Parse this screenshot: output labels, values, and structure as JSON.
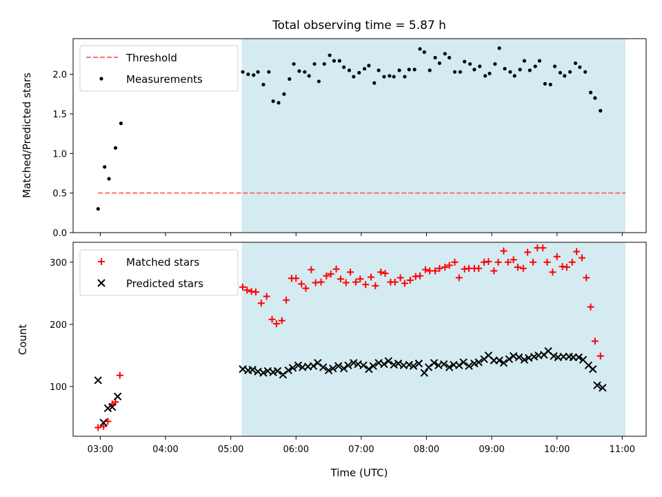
{
  "colors": {
    "shade": "#add8e6",
    "threshold": "#ff6b6b",
    "measurements": "#000000",
    "matched": "#ff0000",
    "predicted": "#000000"
  },
  "chart_data": [
    {
      "type": "scatter",
      "title": "Total observing time = 5.87 h",
      "ylabel": "Matched/Predicted stars",
      "xlabel": "",
      "xlim": [
        "02:35",
        "11:22"
      ],
      "ylim": [
        0,
        2.45
      ],
      "x_ticks": [
        "03:00",
        "04:00",
        "05:00",
        "06:00",
        "07:00",
        "08:00",
        "09:00",
        "10:00",
        "11:00"
      ],
      "y_ticks": [
        "0.0",
        "0.5",
        "1.0",
        "1.5",
        "2.0"
      ],
      "shaded_span": [
        "05:10",
        "11:03"
      ],
      "threshold": {
        "name": "Threshold",
        "value": 0.5,
        "x_range": [
          "02:58",
          "11:03"
        ]
      },
      "legend_position": "upper left",
      "series": [
        {
          "name": "Measurements",
          "points": [
            [
              "02:58",
              0.3
            ],
            [
              "03:04",
              0.83
            ],
            [
              "03:08",
              0.68
            ],
            [
              "03:14",
              1.07
            ],
            [
              "03:19",
              1.38
            ],
            [
              "05:11",
              2.03
            ],
            [
              "05:16",
              2.0
            ],
            [
              "05:21",
              1.99
            ],
            [
              "05:25",
              2.03
            ],
            [
              "05:30",
              1.87
            ],
            [
              "05:35",
              2.03
            ],
            [
              "05:39",
              1.66
            ],
            [
              "05:44",
              1.64
            ],
            [
              "05:49",
              1.75
            ],
            [
              "05:54",
              1.94
            ],
            [
              "05:58",
              2.13
            ],
            [
              "06:03",
              2.04
            ],
            [
              "06:08",
              2.03
            ],
            [
              "06:12",
              1.98
            ],
            [
              "06:17",
              2.13
            ],
            [
              "06:21",
              1.91
            ],
            [
              "06:26",
              2.13
            ],
            [
              "06:31",
              2.24
            ],
            [
              "06:35",
              2.17
            ],
            [
              "06:40",
              2.17
            ],
            [
              "06:44",
              2.09
            ],
            [
              "06:49",
              2.05
            ],
            [
              "06:53",
              1.97
            ],
            [
              "06:58",
              2.02
            ],
            [
              "07:03",
              2.07
            ],
            [
              "07:07",
              2.11
            ],
            [
              "07:12",
              1.89
            ],
            [
              "07:16",
              2.05
            ],
            [
              "07:21",
              1.97
            ],
            [
              "07:26",
              1.98
            ],
            [
              "07:30",
              1.97
            ],
            [
              "07:35",
              2.05
            ],
            [
              "07:40",
              1.97
            ],
            [
              "07:44",
              2.06
            ],
            [
              "07:49",
              2.06
            ],
            [
              "07:54",
              2.32
            ],
            [
              "07:58",
              2.28
            ],
            [
              "08:03",
              2.05
            ],
            [
              "08:08",
              2.21
            ],
            [
              "08:12",
              2.14
            ],
            [
              "08:17",
              2.26
            ],
            [
              "08:21",
              2.21
            ],
            [
              "08:26",
              2.03
            ],
            [
              "08:31",
              2.03
            ],
            [
              "08:35",
              2.16
            ],
            [
              "08:40",
              2.13
            ],
            [
              "08:44",
              2.06
            ],
            [
              "08:49",
              2.1
            ],
            [
              "08:54",
              1.98
            ],
            [
              "08:58",
              2.01
            ],
            [
              "09:03",
              2.13
            ],
            [
              "09:07",
              2.33
            ],
            [
              "09:12",
              2.07
            ],
            [
              "09:17",
              2.03
            ],
            [
              "09:21",
              1.98
            ],
            [
              "09:26",
              2.06
            ],
            [
              "09:30",
              2.17
            ],
            [
              "09:35",
              2.05
            ],
            [
              "09:40",
              2.1
            ],
            [
              "09:44",
              2.17
            ],
            [
              "09:49",
              1.88
            ],
            [
              "09:54",
              1.87
            ],
            [
              "09:58",
              2.1
            ],
            [
              "10:03",
              2.02
            ],
            [
              "10:07",
              1.98
            ],
            [
              "10:12",
              2.03
            ],
            [
              "10:17",
              2.14
            ],
            [
              "10:21",
              2.09
            ],
            [
              "10:26",
              2.03
            ],
            [
              "10:31",
              1.77
            ],
            [
              "10:35",
              1.7
            ],
            [
              "10:40",
              1.54
            ]
          ]
        }
      ]
    },
    {
      "type": "scatter",
      "title": "",
      "ylabel": "Count",
      "xlabel": "Time (UTC)",
      "xlim": [
        "02:35",
        "11:22"
      ],
      "ylim": [
        20,
        332
      ],
      "x_ticks": [
        "03:00",
        "04:00",
        "05:00",
        "06:00",
        "07:00",
        "08:00",
        "09:00",
        "10:00",
        "11:00"
      ],
      "y_ticks": [
        "100",
        "200",
        "300"
      ],
      "shaded_span": [
        "05:10",
        "11:03"
      ],
      "legend_position": "upper left",
      "series": [
        {
          "name": "Matched stars",
          "points": [
            [
              "02:58",
              34
            ],
            [
              "03:03",
              36
            ],
            [
              "03:07",
              44
            ],
            [
              "03:11",
              72
            ],
            [
              "03:14",
              75
            ],
            [
              "03:18",
              118
            ],
            [
              "05:11",
              260
            ],
            [
              "05:15",
              255
            ],
            [
              "05:19",
              253
            ],
            [
              "05:23",
              252
            ],
            [
              "05:28",
              234
            ],
            [
              "05:33",
              245
            ],
            [
              "05:38",
              208
            ],
            [
              "05:42",
              201
            ],
            [
              "05:47",
              206
            ],
            [
              "05:51",
              239
            ],
            [
              "05:56",
              274
            ],
            [
              "06:00",
              274
            ],
            [
              "06:05",
              265
            ],
            [
              "06:09",
              258
            ],
            [
              "06:14",
              288
            ],
            [
              "06:18",
              267
            ],
            [
              "06:23",
              268
            ],
            [
              "06:28",
              278
            ],
            [
              "06:32",
              281
            ],
            [
              "06:37",
              289
            ],
            [
              "06:41",
              273
            ],
            [
              "06:46",
              267
            ],
            [
              "06:50",
              284
            ],
            [
              "06:55",
              268
            ],
            [
              "06:59",
              273
            ],
            [
              "07:04",
              264
            ],
            [
              "07:09",
              276
            ],
            [
              "07:13",
              262
            ],
            [
              "07:18",
              284
            ],
            [
              "07:22",
              282
            ],
            [
              "07:27",
              268
            ],
            [
              "07:31",
              268
            ],
            [
              "07:36",
              275
            ],
            [
              "07:40",
              266
            ],
            [
              "07:45",
              271
            ],
            [
              "07:50",
              277
            ],
            [
              "07:54",
              278
            ],
            [
              "07:59",
              288
            ],
            [
              "08:03",
              286
            ],
            [
              "08:08",
              286
            ],
            [
              "08:12",
              290
            ],
            [
              "08:17",
              292
            ],
            [
              "08:21",
              295
            ],
            [
              "08:26",
              300
            ],
            [
              "08:30",
              275
            ],
            [
              "08:35",
              289
            ],
            [
              "08:39",
              290
            ],
            [
              "08:44",
              290
            ],
            [
              "08:48",
              290
            ],
            [
              "08:53",
              300
            ],
            [
              "08:57",
              301
            ],
            [
              "09:02",
              286
            ],
            [
              "09:06",
              300
            ],
            [
              "09:11",
              318
            ],
            [
              "09:15",
              300
            ],
            [
              "09:20",
              304
            ],
            [
              "09:24",
              292
            ],
            [
              "09:29",
              290
            ],
            [
              "09:33",
              316
            ],
            [
              "09:38",
              300
            ],
            [
              "09:42",
              323
            ],
            [
              "09:47",
              323
            ],
            [
              "09:51",
              300
            ],
            [
              "09:56",
              284
            ],
            [
              "10:00",
              309
            ],
            [
              "10:05",
              293
            ],
            [
              "10:09",
              292
            ],
            [
              "10:14",
              300
            ],
            [
              "10:18",
              317
            ],
            [
              "10:23",
              307
            ],
            [
              "10:27",
              275
            ],
            [
              "10:31",
              228
            ],
            [
              "10:35",
              173
            ],
            [
              "10:40",
              149
            ]
          ]
        },
        {
          "name": "Predicted stars",
          "points": [
            [
              "02:58",
              110
            ],
            [
              "03:03",
              42
            ],
            [
              "03:07",
              65
            ],
            [
              "03:11",
              67
            ],
            [
              "03:16",
              84
            ],
            [
              "05:11",
              128
            ],
            [
              "05:16",
              126
            ],
            [
              "05:20",
              127
            ],
            [
              "05:25",
              124
            ],
            [
              "05:30",
              122
            ],
            [
              "05:34",
              125
            ],
            [
              "05:39",
              123
            ],
            [
              "05:43",
              125
            ],
            [
              "05:48",
              119
            ],
            [
              "05:53",
              126
            ],
            [
              "05:57",
              130
            ],
            [
              "06:02",
              134
            ],
            [
              "06:06",
              131
            ],
            [
              "06:11",
              132
            ],
            [
              "06:16",
              133
            ],
            [
              "06:20",
              138
            ],
            [
              "06:25",
              131
            ],
            [
              "06:30",
              126
            ],
            [
              "06:34",
              129
            ],
            [
              "06:39",
              133
            ],
            [
              "06:44",
              129
            ],
            [
              "06:48",
              134
            ],
            [
              "06:53",
              138
            ],
            [
              "06:57",
              136
            ],
            [
              "07:02",
              134
            ],
            [
              "07:07",
              128
            ],
            [
              "07:11",
              133
            ],
            [
              "07:16",
              138
            ],
            [
              "07:21",
              136
            ],
            [
              "07:25",
              141
            ],
            [
              "07:30",
              135
            ],
            [
              "07:34",
              137
            ],
            [
              "07:39",
              134
            ],
            [
              "07:44",
              135
            ],
            [
              "07:48",
              133
            ],
            [
              "07:53",
              137
            ],
            [
              "07:58",
              122
            ],
            [
              "08:02",
              131
            ],
            [
              "08:07",
              138
            ],
            [
              "08:11",
              134
            ],
            [
              "08:16",
              136
            ],
            [
              "08:21",
              131
            ],
            [
              "08:25",
              135
            ],
            [
              "08:30",
              134
            ],
            [
              "08:34",
              139
            ],
            [
              "08:39",
              133
            ],
            [
              "08:44",
              137
            ],
            [
              "08:48",
              139
            ],
            [
              "08:53",
              144
            ],
            [
              "08:57",
              150
            ],
            [
              "09:02",
              142
            ],
            [
              "09:07",
              142
            ],
            [
              "09:11",
              138
            ],
            [
              "09:16",
              144
            ],
            [
              "09:20",
              149
            ],
            [
              "09:25",
              147
            ],
            [
              "09:30",
              143
            ],
            [
              "09:34",
              146
            ],
            [
              "09:39",
              148
            ],
            [
              "09:43",
              150
            ],
            [
              "09:48",
              151
            ],
            [
              "09:52",
              157
            ],
            [
              "09:57",
              149
            ],
            [
              "10:01",
              147
            ],
            [
              "10:06",
              148
            ],
            [
              "10:11",
              148
            ],
            [
              "10:15",
              147
            ],
            [
              "10:20",
              147
            ],
            [
              "10:24",
              143
            ],
            [
              "10:29",
              134
            ],
            [
              "10:33",
              128
            ],
            [
              "10:37",
              102
            ],
            [
              "10:42",
              98
            ]
          ]
        }
      ]
    }
  ]
}
